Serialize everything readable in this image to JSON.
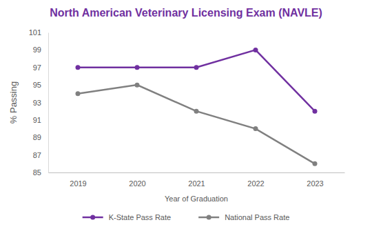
{
  "chart_data": {
    "type": "line",
    "title": "North American Veterinary Licensing Exam (NAVLE)",
    "x_label": "Year of Graduation",
    "y_label": "% Passing",
    "categories": [
      "2019",
      "2020",
      "2021",
      "2022",
      "2023"
    ],
    "series": [
      {
        "name": "K-State Pass Rate",
        "color": "#7030a0",
        "marker": "circle",
        "line_style": "solid",
        "values": [
          97,
          97,
          97,
          99,
          92
        ]
      },
      {
        "name": "National Pass Rate",
        "color": "#808080",
        "marker": "circle",
        "line_style": "solid",
        "values": [
          94,
          95,
          92,
          90,
          86
        ]
      }
    ],
    "ylim": [
      85,
      101
    ],
    "yticks": [
      85,
      87,
      89,
      91,
      93,
      95,
      97,
      99,
      101
    ],
    "grid": false,
    "legend": "bottom"
  }
}
